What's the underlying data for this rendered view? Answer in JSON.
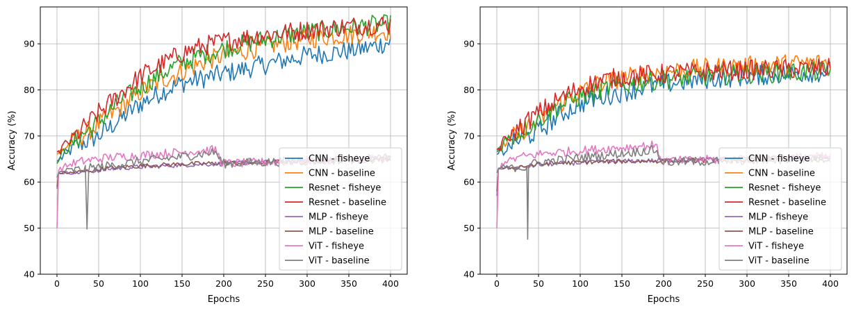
{
  "chart_data": [
    {
      "type": "line",
      "xlabel": "Epochs",
      "ylabel": "Accuracy (%)",
      "xlim": [
        -20,
        420
      ],
      "ylim": [
        40,
        98
      ],
      "xticks": [
        0,
        50,
        100,
        150,
        200,
        250,
        300,
        350,
        400
      ],
      "yticks": [
        40,
        50,
        60,
        70,
        80,
        90
      ],
      "grid": true,
      "legend_position": "lower-right",
      "series": [
        {
          "name": "CNN - fisheye",
          "color": "#1f77b4",
          "x": [
            0,
            10,
            25,
            50,
            75,
            100,
            125,
            150,
            175,
            200,
            225,
            250,
            275,
            300,
            325,
            350,
            375,
            400
          ],
          "values": [
            64.5,
            66,
            68,
            70,
            73.5,
            77,
            79.5,
            81.5,
            82.5,
            83.5,
            84.5,
            85.5,
            86.5,
            87.5,
            88,
            88.5,
            89.2,
            90.5
          ]
        },
        {
          "name": "CNN - baseline",
          "color": "#ff7f0e",
          "x": [
            0,
            10,
            25,
            50,
            75,
            100,
            125,
            150,
            175,
            200,
            225,
            250,
            275,
            300,
            325,
            350,
            375,
            400
          ],
          "values": [
            66,
            67.5,
            69.5,
            72.5,
            76,
            79.5,
            82,
            84,
            86,
            87.5,
            88.5,
            89.5,
            90.3,
            91,
            91.6,
            92,
            92.5,
            92.8
          ]
        },
        {
          "name": "Resnet - fisheye",
          "color": "#2ca02c",
          "x": [
            0,
            10,
            25,
            50,
            75,
            100,
            125,
            150,
            175,
            200,
            225,
            250,
            275,
            300,
            325,
            350,
            375,
            400
          ],
          "values": [
            64,
            67,
            69.5,
            73,
            77.5,
            80.5,
            83.5,
            86,
            87.5,
            89,
            90,
            91,
            91.8,
            92.5,
            93,
            93.5,
            94,
            94.2
          ]
        },
        {
          "name": "Resnet - baseline",
          "color": "#d62728",
          "x": [
            0,
            10,
            25,
            50,
            75,
            100,
            125,
            150,
            175,
            200,
            225,
            250,
            275,
            300,
            325,
            350,
            375,
            400
          ],
          "values": [
            66.5,
            68,
            70.5,
            75,
            79,
            83,
            85.5,
            88,
            89.5,
            90.5,
            91.3,
            92,
            92.5,
            93,
            93.4,
            93.8,
            94.1,
            94.3
          ]
        },
        {
          "name": "MLP - fisheye",
          "color": "#9467bd",
          "x": [
            0,
            2,
            20,
            40,
            60,
            100,
            150,
            200,
            250,
            300,
            350,
            400
          ],
          "values": [
            58.5,
            62,
            62,
            62.3,
            62.8,
            63.3,
            63.7,
            64,
            64.3,
            64.6,
            64.9,
            65.2
          ]
        },
        {
          "name": "MLP - baseline",
          "color": "#8c564b",
          "x": [
            0,
            2,
            20,
            40,
            60,
            100,
            150,
            200,
            250,
            300,
            350,
            400
          ],
          "values": [
            59,
            62,
            62,
            62.5,
            63,
            63.5,
            63.9,
            64.1,
            64.3,
            64.6,
            64.8,
            65
          ]
        },
        {
          "name": "ViT - fisheye",
          "color": "#e377c2",
          "x": [
            0,
            2,
            10,
            30,
            60,
            100,
            150,
            190,
            199,
            250,
            300,
            350,
            400
          ],
          "values": [
            50,
            62.5,
            63.5,
            64.5,
            65.3,
            65.8,
            66.5,
            67,
            64,
            64.3,
            64.6,
            64.9,
            65.2
          ]
        },
        {
          "name": "ViT - baseline",
          "color": "#7f7f7f",
          "x": [
            0,
            2,
            10,
            35,
            36,
            37,
            38,
            60,
            100,
            150,
            190,
            199,
            250,
            300,
            350,
            400
          ],
          "values": [
            61,
            62,
            62.5,
            62.8,
            49.8,
            62.5,
            63,
            63.5,
            64.5,
            65.5,
            66.5,
            64,
            64.3,
            64.6,
            64.9,
            65.2
          ]
        }
      ]
    },
    {
      "type": "line",
      "xlabel": "Epochs",
      "ylabel": "Accuracy (%)",
      "xlim": [
        -20,
        420
      ],
      "ylim": [
        40,
        98
      ],
      "xticks": [
        0,
        50,
        100,
        150,
        200,
        250,
        300,
        350,
        400
      ],
      "yticks": [
        40,
        50,
        60,
        70,
        80,
        90
      ],
      "grid": true,
      "legend_position": "lower-right",
      "series": [
        {
          "name": "CNN - fisheye",
          "color": "#1f77b4",
          "x": [
            0,
            10,
            25,
            50,
            75,
            100,
            125,
            150,
            175,
            200,
            250,
            300,
            350,
            400
          ],
          "values": [
            66,
            67,
            69,
            71,
            74.5,
            77,
            78.5,
            79.5,
            80.5,
            81.3,
            82.3,
            83,
            83.5,
            84
          ]
        },
        {
          "name": "CNN - baseline",
          "color": "#ff7f0e",
          "x": [
            0,
            10,
            25,
            50,
            75,
            100,
            125,
            150,
            175,
            200,
            250,
            300,
            350,
            400
          ],
          "values": [
            67,
            68.5,
            70.5,
            73.5,
            77,
            79.5,
            81.5,
            82.5,
            83.3,
            84,
            84.7,
            85.2,
            85.6,
            86
          ]
        },
        {
          "name": "Resnet - fisheye",
          "color": "#2ca02c",
          "x": [
            0,
            10,
            25,
            50,
            75,
            100,
            125,
            150,
            175,
            200,
            250,
            300,
            350,
            400
          ],
          "values": [
            66.5,
            69,
            70.5,
            73.5,
            76.5,
            78.5,
            80,
            81,
            81.8,
            82.3,
            83,
            83.5,
            83.8,
            84
          ]
        },
        {
          "name": "Resnet - baseline",
          "color": "#d62728",
          "x": [
            0,
            10,
            25,
            50,
            75,
            100,
            125,
            150,
            175,
            200,
            250,
            300,
            350,
            400
          ],
          "values": [
            67,
            69,
            71.5,
            75,
            78,
            80.5,
            82,
            82.8,
            83.2,
            83.5,
            84,
            84.3,
            84.5,
            84.7
          ]
        },
        {
          "name": "MLP - fisheye",
          "color": "#9467bd",
          "x": [
            0,
            2,
            20,
            40,
            60,
            100,
            150,
            200,
            250,
            300,
            350,
            400
          ],
          "values": [
            57,
            63,
            63,
            63.5,
            63.9,
            64.2,
            64.5,
            64.7,
            64.9,
            65.1,
            65.3,
            65.5
          ]
        },
        {
          "name": "MLP - baseline",
          "color": "#8c564b",
          "x": [
            0,
            2,
            20,
            40,
            60,
            100,
            150,
            200,
            250,
            300,
            350,
            400
          ],
          "values": [
            58,
            63,
            63.1,
            63.6,
            64,
            64.3,
            64.5,
            64.6,
            64.7,
            64.8,
            64.9,
            65
          ]
        },
        {
          "name": "ViT - fisheye",
          "color": "#e377c2",
          "x": [
            0,
            2,
            10,
            30,
            60,
            100,
            150,
            190,
            199,
            250,
            300,
            350,
            400
          ],
          "values": [
            50,
            63,
            64.5,
            65.5,
            66.3,
            66.8,
            67.5,
            68,
            64.5,
            64.8,
            65,
            65.3,
            65.5
          ]
        },
        {
          "name": "ViT - baseline",
          "color": "#7f7f7f",
          "x": [
            0,
            2,
            10,
            36,
            37,
            38,
            39,
            60,
            100,
            150,
            190,
            199,
            250,
            300,
            350,
            400
          ],
          "values": [
            62,
            63,
            63.2,
            63.2,
            47.6,
            63.5,
            63.8,
            64.5,
            65.3,
            66.2,
            67,
            64.3,
            64.5,
            64.7,
            64.9,
            65.1
          ]
        }
      ]
    }
  ]
}
